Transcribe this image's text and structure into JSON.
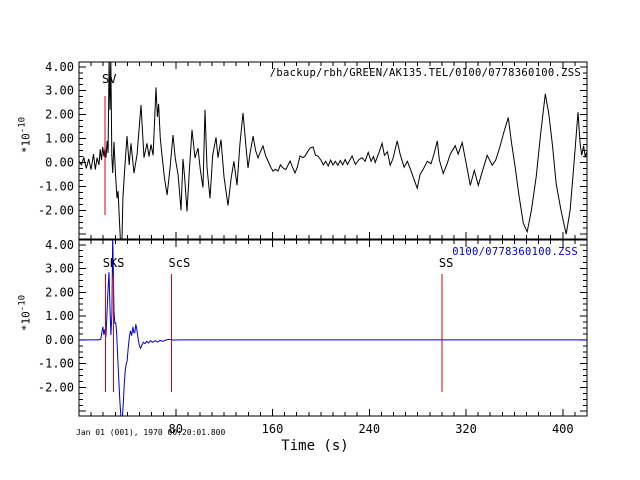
{
  "colors": {
    "background": "#ffffff",
    "axis": "#000000",
    "trace_top": "#000000",
    "trace_bottom": "#0000cc",
    "pick_red": "#dd0000",
    "label_blue": "#0000cc"
  },
  "chart_data": {
    "type": "line",
    "xlabel": "Time (s)",
    "ylabel_base": "*10",
    "ylabel_exp": "-10",
    "timestamp": "Jan 01 (001), 1970 00:20:01.800",
    "x_range": [
      0,
      420
    ],
    "x_major_ticks": [
      80,
      160,
      240,
      320,
      400
    ],
    "x_minor_step": 10,
    "y_range_display": [
      -3.2,
      4.2
    ],
    "y_major_step": 1,
    "y_minor_step": 0.25,
    "y_tick_labels": [
      {
        "v": 4,
        "label": "4.00"
      },
      {
        "v": 3,
        "label": "3.00"
      },
      {
        "v": 2,
        "label": "2.00"
      },
      {
        "v": 1,
        "label": "1.00"
      },
      {
        "v": 0,
        "label": "0.00"
      },
      {
        "v": -1,
        "label": "-1.00"
      },
      {
        "v": -2,
        "label": "-2.00"
      }
    ],
    "pick_color": "#dd0000",
    "pick_span": [
      2.78,
      -2.2
    ],
    "panels": [
      {
        "name": "synthetic-seismogram",
        "label": "/backup/rbh/GREEN/AK135.TEL/0100/0778360100.ZSS",
        "label_color": "#000000",
        "color": "#000000",
        "y_unit": "*10^-10",
        "picks": [
          {
            "label": "SV",
            "t": 21.5
          }
        ],
        "points": [
          [
            0,
            0.05
          ],
          [
            2,
            -0.1
          ],
          [
            4,
            0.2
          ],
          [
            6,
            -0.25
          ],
          [
            8,
            0.15
          ],
          [
            10,
            -0.3
          ],
          [
            12,
            0.35
          ],
          [
            13.5,
            -0.3
          ],
          [
            15,
            0.2
          ],
          [
            16.5,
            -0.1
          ],
          [
            17.5,
            0.55
          ],
          [
            18.6,
            0.1
          ],
          [
            19.6,
            0.65
          ],
          [
            20.7,
            0.25
          ],
          [
            21.5,
            0.6
          ],
          [
            22.3,
            0.2
          ],
          [
            23.2,
            0.9
          ],
          [
            24.1,
            0.4
          ],
          [
            24.9,
            4.4
          ],
          [
            25.6,
            2.2
          ],
          [
            26.3,
            4.4
          ],
          [
            27.1,
            0.3
          ],
          [
            27.9,
            -0.44
          ],
          [
            28.9,
            0.86
          ],
          [
            30.2,
            -0.5
          ],
          [
            31.4,
            -1.5
          ],
          [
            32.3,
            -1.2
          ],
          [
            33.4,
            -2.4
          ],
          [
            34.5,
            -3.5
          ],
          [
            35.5,
            -3.4
          ],
          [
            36.3,
            -1.5
          ],
          [
            37.7,
            -0.35
          ],
          [
            39.7,
            1.1
          ],
          [
            41.5,
            -0.1
          ],
          [
            43,
            0.8
          ],
          [
            45.5,
            -0.45
          ],
          [
            48,
            0.35
          ],
          [
            51.3,
            2.4
          ],
          [
            53.7,
            0.2
          ],
          [
            56.2,
            0.8
          ],
          [
            57.9,
            0.25
          ],
          [
            59.5,
            0.75
          ],
          [
            61.3,
            0.3
          ],
          [
            63.7,
            3.14
          ],
          [
            64.8,
            1.9
          ],
          [
            65.8,
            2.45
          ],
          [
            67.2,
            1.0
          ],
          [
            68.6,
            0.3
          ],
          [
            70.5,
            -0.6
          ],
          [
            72.8,
            -1.36
          ],
          [
            75.2,
            -0.25
          ],
          [
            77.7,
            1.15
          ],
          [
            79.5,
            0.2
          ],
          [
            81.9,
            -0.52
          ],
          [
            84.3,
            -2.0
          ],
          [
            86,
            0.15
          ],
          [
            87.5,
            -0.7
          ],
          [
            89.3,
            -2.05
          ],
          [
            91.3,
            -0.3
          ],
          [
            93.4,
            1.36
          ],
          [
            95.9,
            0.19
          ],
          [
            98.4,
            0.6
          ],
          [
            100.3,
            -0.3
          ],
          [
            102.5,
            -1.05
          ],
          [
            104.2,
            2.2
          ],
          [
            105.8,
            -0.2
          ],
          [
            108.3,
            -1.5
          ],
          [
            110.5,
            0.3
          ],
          [
            113.3,
            1.05
          ],
          [
            114.9,
            0.2
          ],
          [
            117.4,
            0.95
          ],
          [
            119.9,
            -0.6
          ],
          [
            123.2,
            -1.8
          ],
          [
            125.7,
            -0.7
          ],
          [
            128.1,
            0.05
          ],
          [
            130.6,
            -0.95
          ],
          [
            133.1,
            0.8
          ],
          [
            135.6,
            2.07
          ],
          [
            138,
            0.7
          ],
          [
            139.7,
            -0.23
          ],
          [
            141.5,
            0.4
          ],
          [
            143.9,
            1.1
          ],
          [
            146,
            0.5
          ],
          [
            148,
            0.19
          ],
          [
            150,
            0.45
          ],
          [
            152.1,
            0.69
          ],
          [
            154.2,
            0.3
          ],
          [
            156.3,
            0.06
          ],
          [
            158.5,
            -0.2
          ],
          [
            160.4,
            -0.36
          ],
          [
            162.5,
            -0.28
          ],
          [
            164.5,
            -0.36
          ],
          [
            166.5,
            -0.1
          ],
          [
            168.7,
            -0.23
          ],
          [
            171,
            -0.3
          ],
          [
            174.5,
            0.06
          ],
          [
            176.5,
            -0.2
          ],
          [
            178.6,
            -0.44
          ],
          [
            180.5,
            -0.2
          ],
          [
            182.7,
            0.27
          ],
          [
            185,
            0.2
          ],
          [
            186.9,
            0.27
          ],
          [
            189,
            0.45
          ],
          [
            191,
            0.6
          ],
          [
            193.5,
            0.65
          ],
          [
            195.5,
            0.3
          ],
          [
            197.6,
            0.27
          ],
          [
            200,
            0.1
          ],
          [
            202,
            -0.1
          ],
          [
            204,
            0.05
          ],
          [
            206,
            -0.15
          ],
          [
            208,
            0.1
          ],
          [
            210,
            -0.1
          ],
          [
            212,
            0.05
          ],
          [
            214,
            -0.12
          ],
          [
            216,
            0.08
          ],
          [
            218,
            -0.1
          ],
          [
            220,
            0.12
          ],
          [
            222,
            -0.08
          ],
          [
            225.8,
            0.27
          ],
          [
            228.5,
            -0.08
          ],
          [
            231.5,
            0.12
          ],
          [
            234,
            0.2
          ],
          [
            236.5,
            0.05
          ],
          [
            239.1,
            0.42
          ],
          [
            241.5,
            0.05
          ],
          [
            243.5,
            0.25
          ],
          [
            244.9,
            0
          ],
          [
            247.5,
            0.35
          ],
          [
            250.6,
            0.8
          ],
          [
            252.5,
            0.3
          ],
          [
            255,
            0.45
          ],
          [
            257.3,
            -0.12
          ],
          [
            259.5,
            0.15
          ],
          [
            263.1,
            0.9
          ],
          [
            265.5,
            0.35
          ],
          [
            268.8,
            -0.2
          ],
          [
            271.5,
            0.05
          ],
          [
            274.5,
            -0.35
          ],
          [
            277,
            -0.7
          ],
          [
            279.6,
            -1.08
          ],
          [
            282,
            -0.5
          ],
          [
            285,
            -0.25
          ],
          [
            288,
            0.05
          ],
          [
            291,
            -0.05
          ],
          [
            293.5,
            0.35
          ],
          [
            296.2,
            0.9
          ],
          [
            298,
            0.1
          ],
          [
            301.1,
            -0.46
          ],
          [
            304,
            -0.1
          ],
          [
            307,
            0.35
          ],
          [
            311,
            0.7
          ],
          [
            313.5,
            0.35
          ],
          [
            316.8,
            0.83
          ],
          [
            320,
            0
          ],
          [
            323.5,
            -0.96
          ],
          [
            326.8,
            -0.33
          ],
          [
            330.1,
            -0.96
          ],
          [
            333,
            -0.45
          ],
          [
            337.5,
            0.3
          ],
          [
            341.6,
            -0.12
          ],
          [
            344.5,
            0.1
          ],
          [
            348,
            0.65
          ],
          [
            351.5,
            1.3
          ],
          [
            354.9,
            1.88
          ],
          [
            357.5,
            0.85
          ],
          [
            360.5,
            -0.15
          ],
          [
            363.5,
            -1.3
          ],
          [
            367.3,
            -2.54
          ],
          [
            370.6,
            -2.9
          ],
          [
            374,
            -2.0
          ],
          [
            378,
            -0.6
          ],
          [
            381.5,
            1.1
          ],
          [
            385.5,
            2.87
          ],
          [
            388.5,
            2.0
          ],
          [
            391.5,
            0.7
          ],
          [
            394.5,
            -0.9
          ],
          [
            398.5,
            -2.0
          ],
          [
            402.8,
            -3.0
          ],
          [
            406,
            -2.0
          ],
          [
            409,
            -0.2
          ],
          [
            412.6,
            2.1
          ],
          [
            414.3,
            0.8
          ],
          [
            415.6,
            0.3
          ],
          [
            417.2,
            0.7
          ],
          [
            418.5,
            0.25
          ],
          [
            420,
            0.45
          ]
        ]
      },
      {
        "name": "observed-seismogram",
        "label": "0100/0778360100.ZSS",
        "label_color": "#0000cc",
        "color": "#0000cc",
        "y_unit": "*10^-10",
        "picks": [
          {
            "label": "SKS",
            "t": 22.1
          },
          {
            "label": "",
            "t": 28.4
          },
          {
            "label": "ScS",
            "t": 76.5
          },
          {
            "label": "SS",
            "t": 300
          }
        ],
        "points": [
          [
            0,
            0
          ],
          [
            6,
            0
          ],
          [
            12,
            0
          ],
          [
            16,
            0
          ],
          [
            18,
            0.03
          ],
          [
            19,
            0.35
          ],
          [
            19.8,
            0.55
          ],
          [
            20.6,
            0.2
          ],
          [
            21.4,
            0.45
          ],
          [
            22.2,
            0.12
          ],
          [
            23,
            0.95
          ],
          [
            23.9,
            2.0
          ],
          [
            24.8,
            2.85
          ],
          [
            25.6,
            1.3
          ],
          [
            26.4,
            0.2
          ],
          [
            27.2,
            1.1
          ],
          [
            27.9,
            4.5
          ],
          [
            28.9,
            1.2
          ],
          [
            29.6,
            0.7
          ],
          [
            30.4,
            0.72
          ],
          [
            31.2,
            0.25
          ],
          [
            32,
            -0.7
          ],
          [
            32.9,
            -1.7
          ],
          [
            33.8,
            -2.6
          ],
          [
            34.7,
            -3.3
          ],
          [
            35.6,
            -3.4
          ],
          [
            36.5,
            -2.8
          ],
          [
            37.4,
            -1.9
          ],
          [
            38.2,
            -1.3
          ],
          [
            39,
            -1.0
          ],
          [
            39.8,
            -0.9
          ],
          [
            40.7,
            -0.35
          ],
          [
            41.6,
            0.1
          ],
          [
            42.6,
            0.38
          ],
          [
            43.6,
            0.18
          ],
          [
            44.6,
            0.55
          ],
          [
            45.4,
            0.3
          ],
          [
            46.2,
            0.32
          ],
          [
            47,
            0.66
          ],
          [
            47.9,
            0.42
          ],
          [
            48.9,
            0.05
          ],
          [
            49.9,
            -0.25
          ],
          [
            50.9,
            -0.35
          ],
          [
            52,
            -0.22
          ],
          [
            53.2,
            -0.1
          ],
          [
            54.6,
            -0.16
          ],
          [
            56,
            -0.06
          ],
          [
            57.5,
            -0.13
          ],
          [
            59,
            -0.04
          ],
          [
            61,
            -0.1
          ],
          [
            63,
            -0.03
          ],
          [
            65,
            -0.09
          ],
          [
            67,
            -0.02
          ],
          [
            69.5,
            -0.06
          ],
          [
            72,
            0
          ],
          [
            75,
            0.02
          ],
          [
            78,
            -0.01
          ],
          [
            82,
            0
          ],
          [
            90,
            0
          ],
          [
            105,
            0
          ],
          [
            125,
            0
          ],
          [
            150,
            0
          ],
          [
            180,
            0
          ],
          [
            210,
            0
          ],
          [
            240,
            0
          ],
          [
            270,
            0
          ],
          [
            300,
            0
          ],
          [
            330,
            0
          ],
          [
            360,
            0
          ],
          [
            390,
            0
          ],
          [
            420,
            0
          ]
        ]
      }
    ]
  }
}
